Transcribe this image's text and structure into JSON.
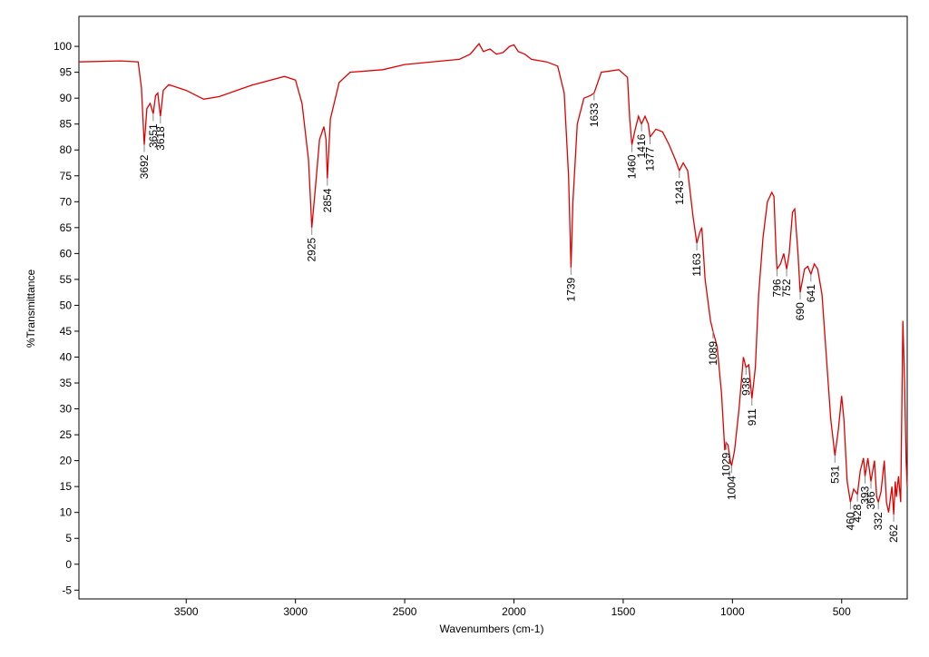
{
  "chart_data": {
    "type": "line",
    "xlabel": "Wavenumbers (cm-1)",
    "ylabel": "%Transmittance",
    "color": "#e00000",
    "xlim": [
      3991,
      200
    ],
    "ylim": [
      -6.7,
      105.8
    ],
    "xticks": [
      3500,
      3000,
      2500,
      2000,
      1500,
      1000,
      500
    ],
    "yticks": [
      -5,
      0,
      5,
      10,
      15,
      20,
      25,
      30,
      35,
      40,
      45,
      50,
      55,
      60,
      65,
      70,
      75,
      80,
      85,
      90,
      95,
      100
    ],
    "x": [
      3991,
      3800,
      3720,
      3705,
      3692,
      3680,
      3665,
      3651,
      3640,
      3630,
      3618,
      3605,
      3580,
      3500,
      3420,
      3350,
      3200,
      3050,
      3000,
      2970,
      2940,
      2925,
      2910,
      2890,
      2870,
      2860,
      2854,
      2840,
      2800,
      2750,
      2600,
      2500,
      2300,
      2250,
      2200,
      2160,
      2140,
      2110,
      2080,
      2050,
      2020,
      2000,
      1980,
      1950,
      1920,
      1850,
      1800,
      1770,
      1750,
      1739,
      1730,
      1710,
      1680,
      1650,
      1633,
      1600,
      1520,
      1480,
      1470,
      1460,
      1445,
      1430,
      1416,
      1400,
      1385,
      1377,
      1350,
      1320,
      1290,
      1260,
      1243,
      1225,
      1205,
      1180,
      1163,
      1150,
      1140,
      1125,
      1100,
      1089,
      1070,
      1050,
      1035,
      1029,
      1020,
      1010,
      1004,
      990,
      970,
      950,
      938,
      925,
      911,
      895,
      880,
      860,
      840,
      820,
      810,
      800,
      796,
      780,
      765,
      752,
      740,
      725,
      715,
      700,
      690,
      670,
      655,
      641,
      625,
      610,
      590,
      570,
      550,
      531,
      515,
      500,
      490,
      475,
      460,
      445,
      428,
      415,
      400,
      393,
      380,
      366,
      350,
      340,
      332,
      320,
      305,
      295,
      285,
      270,
      262,
      255,
      250,
      240,
      230,
      220,
      212,
      205,
      200
    ],
    "values": [
      97.0,
      97.2,
      97,
      92,
      81,
      88,
      89,
      87,
      90.5,
      91,
      86.5,
      91.5,
      92.6,
      91.5,
      89.8,
      90.3,
      92.5,
      94.2,
      93.5,
      89,
      78,
      65,
      72,
      82,
      84.5,
      82,
      74.5,
      86,
      93,
      95,
      95.5,
      96.5,
      97.3,
      97.5,
      98.5,
      100.5,
      99,
      99.5,
      98.5,
      98.8,
      100,
      100.3,
      99,
      98.5,
      97.5,
      97,
      96.2,
      91,
      75,
      57.3,
      70,
      85,
      90,
      90.5,
      91,
      95,
      95.5,
      94,
      86,
      81,
      84,
      86.5,
      85,
      86.5,
      85,
      82.5,
      84,
      83.5,
      81,
      78,
      76,
      77.5,
      76,
      67,
      62,
      64,
      65,
      55,
      47,
      45,
      42,
      33,
      22,
      23.5,
      23,
      20,
      19,
      22,
      30,
      40,
      38,
      38.5,
      32,
      38,
      52,
      63,
      70,
      71.8,
      71,
      60,
      57,
      58,
      60,
      57,
      60,
      68,
      68.6,
      60,
      52.5,
      57,
      57.5,
      56,
      58,
      57,
      52,
      40,
      28,
      21,
      26,
      32.5,
      28,
      16,
      12,
      14.5,
      13.5,
      18,
      20.5,
      17,
      20.5,
      16,
      20,
      13,
      12,
      14,
      20,
      12,
      10,
      15,
      9.6,
      16,
      13,
      17,
      12,
      47,
      35,
      20,
      15
    ],
    "annotations": [
      {
        "x": 3692,
        "y": 81
      },
      {
        "x": 3651,
        "y": 87
      },
      {
        "x": 3618,
        "y": 86.5
      },
      {
        "x": 2925,
        "y": 65
      },
      {
        "x": 2854,
        "y": 74.5
      },
      {
        "x": 1739,
        "y": 57.3
      },
      {
        "x": 1633,
        "y": 91
      },
      {
        "x": 1460,
        "y": 81
      },
      {
        "x": 1416,
        "y": 85
      },
      {
        "x": 1377,
        "y": 82.5
      },
      {
        "x": 1243,
        "y": 76
      },
      {
        "x": 1163,
        "y": 62
      },
      {
        "x": 1089,
        "y": 45
      },
      {
        "x": 1029,
        "y": 23.5
      },
      {
        "x": 1004,
        "y": 19
      },
      {
        "x": 938,
        "y": 38
      },
      {
        "x": 911,
        "y": 32
      },
      {
        "x": 796,
        "y": 57
      },
      {
        "x": 752,
        "y": 57
      },
      {
        "x": 690,
        "y": 52.5
      },
      {
        "x": 641,
        "y": 56
      },
      {
        "x": 531,
        "y": 21
      },
      {
        "x": 460,
        "y": 12
      },
      {
        "x": 428,
        "y": 13.5
      },
      {
        "x": 393,
        "y": 17
      },
      {
        "x": 366,
        "y": 16
      },
      {
        "x": 332,
        "y": 12
      },
      {
        "x": 262,
        "y": 9.6
      }
    ]
  }
}
